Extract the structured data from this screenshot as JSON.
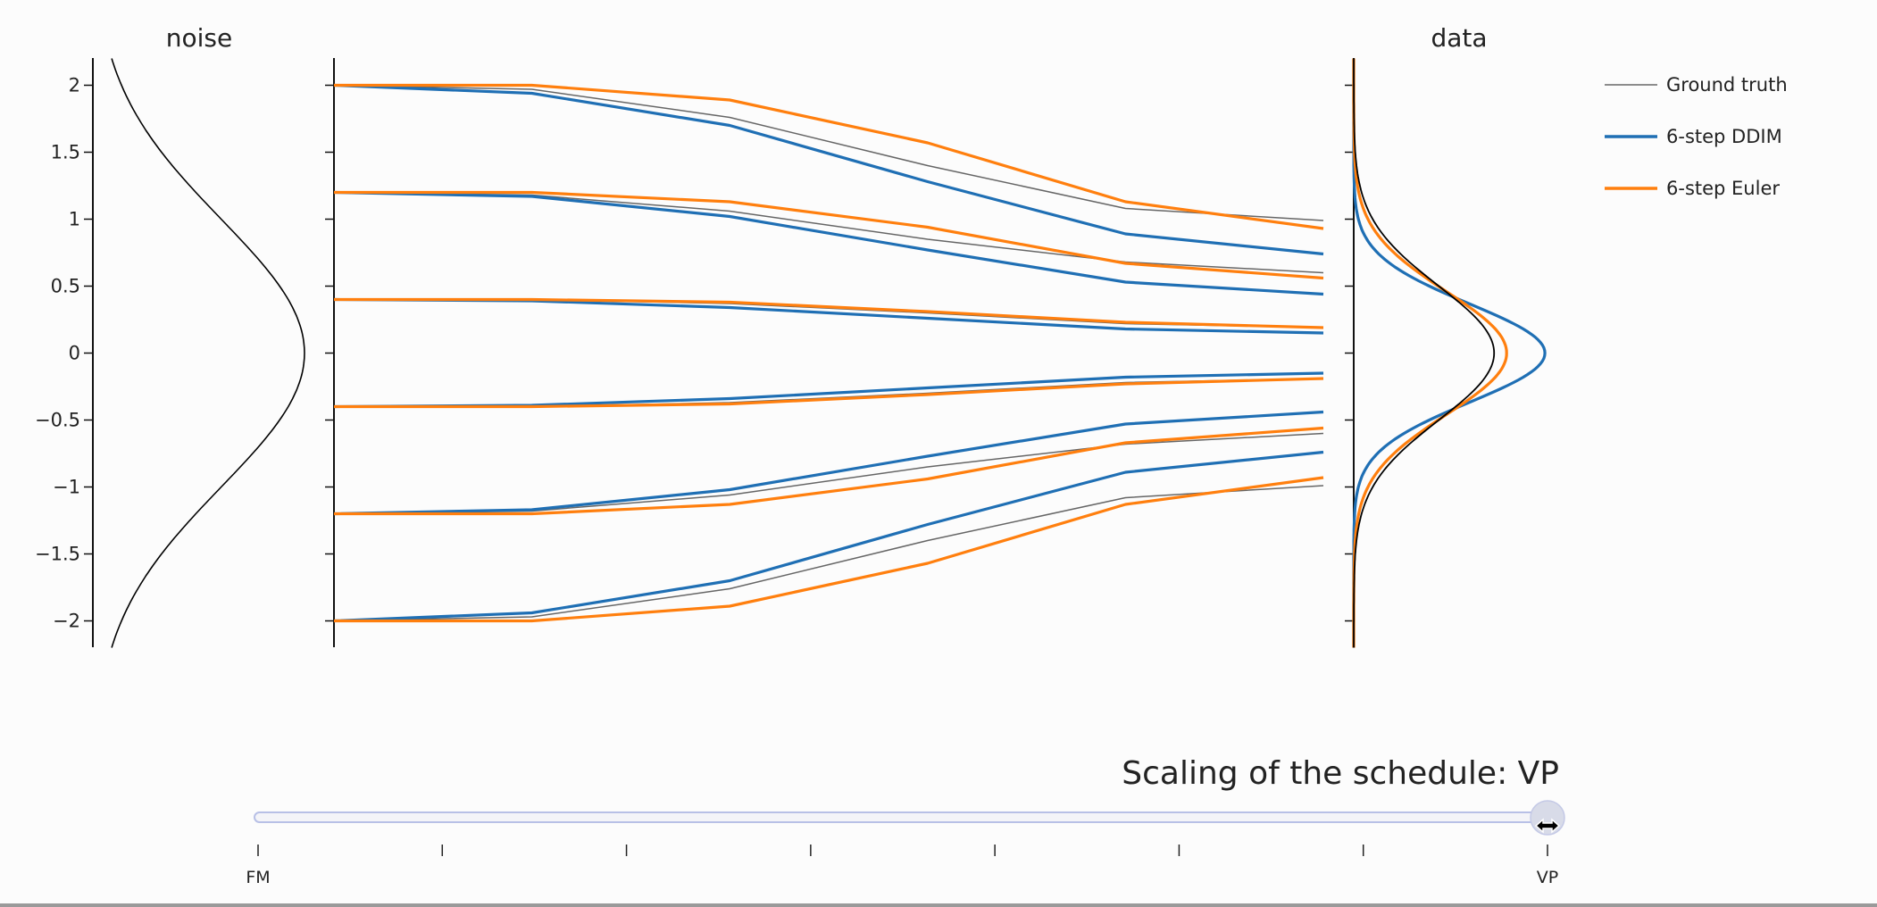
{
  "chart_data": {
    "type": "line",
    "panels": {
      "noise": {
        "title": "noise",
        "density": {
          "mean": 0,
          "std": 1,
          "color": "#000000"
        }
      },
      "trajectories": {
        "t": [
          0,
          1,
          2,
          3,
          4,
          5
        ],
        "series": [
          {
            "name": "Ground truth",
            "color": "#666666",
            "lines": [
              [
                2,
                1.97,
                1.76,
                1.4,
                1.08,
                0.99
              ],
              [
                1.2,
                1.18,
                1.06,
                0.85,
                0.68,
                0.6
              ],
              [
                0.4,
                0.4,
                0.37,
                0.3,
                0.22,
                0.19
              ],
              [
                -0.4,
                -0.4,
                -0.37,
                -0.3,
                -0.22,
                -0.19
              ],
              [
                -1.2,
                -1.18,
                -1.06,
                -0.85,
                -0.68,
                -0.6
              ],
              [
                -2,
                -1.97,
                -1.76,
                -1.4,
                -1.08,
                -0.99
              ]
            ]
          },
          {
            "name": "6-step DDIM",
            "color": "#1f6fb4",
            "lines": [
              [
                2,
                1.94,
                1.7,
                1.28,
                0.89,
                0.74
              ],
              [
                1.2,
                1.17,
                1.02,
                0.77,
                0.53,
                0.44
              ],
              [
                0.4,
                0.39,
                0.34,
                0.26,
                0.18,
                0.15
              ],
              [
                -0.4,
                -0.39,
                -0.34,
                -0.26,
                -0.18,
                -0.15
              ],
              [
                -1.2,
                -1.17,
                -1.02,
                -0.77,
                -0.53,
                -0.44
              ],
              [
                -2,
                -1.94,
                -1.7,
                -1.28,
                -0.89,
                -0.74
              ]
            ]
          },
          {
            "name": "6-step Euler",
            "color": "#ff7f0e",
            "lines": [
              [
                2,
                2.0,
                1.89,
                1.57,
                1.13,
                0.93
              ],
              [
                1.2,
                1.2,
                1.13,
                0.94,
                0.67,
                0.56
              ],
              [
                0.4,
                0.4,
                0.38,
                0.31,
                0.23,
                0.19
              ],
              [
                -0.4,
                -0.4,
                -0.38,
                -0.31,
                -0.23,
                -0.19
              ],
              [
                -1.2,
                -1.2,
                -1.13,
                -0.94,
                -0.67,
                -0.56
              ],
              [
                -2,
                -2.0,
                -1.89,
                -1.57,
                -1.13,
                -0.93
              ]
            ]
          }
        ]
      },
      "data": {
        "title": "data",
        "densities": [
          {
            "name": "Ground truth",
            "mean": 0,
            "std": 0.5,
            "color": "#000000"
          },
          {
            "name": "6-step DDIM",
            "mean": 0,
            "std": 0.367,
            "color": "#1f6fb4"
          },
          {
            "name": "6-step Euler",
            "mean": 0,
            "std": 0.459,
            "color": "#ff7f0e"
          }
        ]
      }
    },
    "ylim": [
      -2.2,
      2.2
    ],
    "yticks": [
      2,
      1.5,
      1,
      0.5,
      0,
      -0.5,
      -1,
      -1.5,
      -2
    ],
    "ytick_labels": [
      "2",
      "1.5",
      "1",
      "0.5",
      "0",
      "−0.5",
      "−1",
      "−1.5",
      "−2"
    ],
    "legend": {
      "placement": "top-right",
      "entries": [
        "Ground truth",
        "6-step DDIM",
        "6-step Euler"
      ]
    }
  },
  "slider": {
    "title": "Scaling of the schedule: VP",
    "steps": 8,
    "value_index": 7,
    "start_label": "FM",
    "end_label": "VP"
  }
}
